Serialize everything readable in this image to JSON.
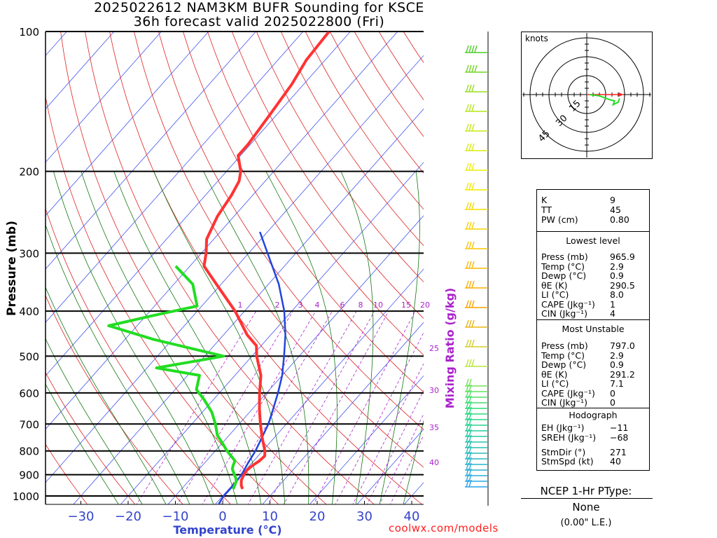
{
  "header": {
    "title_line1": "2025022612 NAM3KM BUFR Sounding for KSCE",
    "title_line2": "36h forecast valid 2025022800 (Fri)"
  },
  "chart_data": {
    "type": "skew-t",
    "xlabel": "Temperature (°C)",
    "ylabel": "Pressure (mb)",
    "mixing_ratio_label": "Mixing Ratio (g/kg)",
    "pressure_ticks": [
      100,
      200,
      300,
      400,
      500,
      600,
      700,
      800,
      900,
      1000
    ],
    "temperature_ticks": [
      -30,
      -20,
      -10,
      0,
      10,
      20,
      30,
      40
    ],
    "mixing_ratio_ticks": [
      1,
      2,
      3,
      4,
      6,
      8,
      10,
      15,
      20,
      25,
      30,
      35,
      40
    ],
    "xlim": [
      -39,
      41
    ],
    "ylim": [
      1050,
      100
    ],
    "temperature_profile": [
      {
        "p": 966,
        "t": 2.9
      },
      {
        "p": 950,
        "t": 2.0
      },
      {
        "p": 925,
        "t": 1.0
      },
      {
        "p": 900,
        "t": 0.5
      },
      {
        "p": 880,
        "t": 0.3
      },
      {
        "p": 860,
        "t": 0.6
      },
      {
        "p": 840,
        "t": 1.2
      },
      {
        "p": 820,
        "t": 1.4
      },
      {
        "p": 800,
        "t": 0.5
      },
      {
        "p": 750,
        "t": -2.5
      },
      {
        "p": 700,
        "t": -5.5
      },
      {
        "p": 650,
        "t": -8.5
      },
      {
        "p": 600,
        "t": -11.5
      },
      {
        "p": 550,
        "t": -14.5
      },
      {
        "p": 500,
        "t": -19.0
      },
      {
        "p": 475,
        "t": -21.0
      },
      {
        "p": 450,
        "t": -25.0
      },
      {
        "p": 400,
        "t": -32.0
      },
      {
        "p": 350,
        "t": -41.0
      },
      {
        "p": 320,
        "t": -47.0
      },
      {
        "p": 300,
        "t": -49.0
      },
      {
        "p": 280,
        "t": -51.5
      },
      {
        "p": 250,
        "t": -53.5
      },
      {
        "p": 225,
        "t": -54.5
      },
      {
        "p": 210,
        "t": -55.5
      },
      {
        "p": 200,
        "t": -57.0
      },
      {
        "p": 185,
        "t": -60.5
      },
      {
        "p": 175,
        "t": -60.5
      },
      {
        "p": 150,
        "t": -61.5
      },
      {
        "p": 130,
        "t": -62.5
      },
      {
        "p": 115,
        "t": -64.0
      },
      {
        "p": 100,
        "t": -64.5
      }
    ],
    "dewpoint_profile": [
      {
        "p": 966,
        "t": 0.9
      },
      {
        "p": 950,
        "t": 0.6
      },
      {
        "p": 925,
        "t": 0.0
      },
      {
        "p": 900,
        "t": -1.5
      },
      {
        "p": 875,
        "t": -3.0
      },
      {
        "p": 860,
        "t": -3.5
      },
      {
        "p": 840,
        "t": -4.0
      },
      {
        "p": 800,
        "t": -7.5
      },
      {
        "p": 775,
        "t": -9.5
      },
      {
        "p": 740,
        "t": -12.5
      },
      {
        "p": 700,
        "t": -15.0
      },
      {
        "p": 660,
        "t": -18.0
      },
      {
        "p": 620,
        "t": -22.0
      },
      {
        "p": 590,
        "t": -25.5
      },
      {
        "p": 550,
        "t": -27.5
      },
      {
        "p": 530,
        "t": -38.0
      },
      {
        "p": 500,
        "t": -26.0
      },
      {
        "p": 460,
        "t": -44.0
      },
      {
        "p": 430,
        "t": -56.0
      },
      {
        "p": 410,
        "t": -49.0
      },
      {
        "p": 390,
        "t": -41.0
      },
      {
        "p": 350,
        "t": -46.0
      },
      {
        "p": 320,
        "t": -53.0
      }
    ],
    "parcel_path": [
      {
        "p": 1050,
        "t": 0.8
      },
      {
        "p": 1000,
        "t": 0.2
      },
      {
        "p": 950,
        "t": 0.3
      },
      {
        "p": 900,
        "t": 0.0
      },
      {
        "p": 850,
        "t": -0.8
      },
      {
        "p": 800,
        "t": -1.5
      },
      {
        "p": 750,
        "t": -2.6
      },
      {
        "p": 700,
        "t": -3.8
      },
      {
        "p": 650,
        "t": -5.6
      },
      {
        "p": 600,
        "t": -7.6
      },
      {
        "p": 550,
        "t": -10.0
      },
      {
        "p": 500,
        "t": -13.2
      },
      {
        "p": 450,
        "t": -16.9
      },
      {
        "p": 400,
        "t": -21.6
      },
      {
        "p": 350,
        "t": -27.8
      },
      {
        "p": 300,
        "t": -36.0
      },
      {
        "p": 270,
        "t": -41.6
      }
    ],
    "wind_barbs_color_scale": "pressure-coded (green aloft to yellow/orange mid to cyan low)"
  },
  "hodograph": {
    "unit_label": "knots",
    "ring_labels": [
      "15",
      "30",
      "45"
    ],
    "trace": [
      {
        "u": 2,
        "v": 0
      },
      {
        "u": 10,
        "v": -1
      },
      {
        "u": 18,
        "v": -4
      },
      {
        "u": 22,
        "v": -5
      },
      {
        "u": 21,
        "v": -8
      },
      {
        "u": 23,
        "v": -7
      },
      {
        "u": 25,
        "v": -6
      },
      {
        "u": 26,
        "v": -3
      }
    ],
    "motion_vector": {
      "u": 27,
      "v": 0
    }
  },
  "indices": {
    "top": [
      {
        "label": "K",
        "value": "9"
      },
      {
        "label": "TT",
        "value": "45"
      },
      {
        "label": "PW (cm)",
        "value": "0.80"
      }
    ],
    "lowest_level_title": "Lowest level",
    "lowest_level": [
      {
        "label": "Press (mb)",
        "value": "965.9"
      },
      {
        "label": "Temp (°C)",
        "value": "2.9"
      },
      {
        "label": "Dewp (°C)",
        "value": "0.9"
      },
      {
        "label": "θE (K)",
        "value": "290.5"
      },
      {
        "label": "LI (°C)",
        "value": "8.0"
      },
      {
        "label": "CAPE (Jkg⁻¹)",
        "value": "1"
      },
      {
        "label": "CIN (Jkg⁻¹)",
        "value": "4"
      }
    ],
    "most_unstable_title": "Most Unstable",
    "most_unstable": [
      {
        "label": "Press (mb)",
        "value": "797.0"
      },
      {
        "label": "Temp (°C)",
        "value": "2.9"
      },
      {
        "label": "Dewp (°C)",
        "value": "0.9"
      },
      {
        "label": "θE (K)",
        "value": "291.2"
      },
      {
        "label": "LI (°C)",
        "value": "7.1"
      },
      {
        "label": "CAPE (Jkg⁻¹)",
        "value": "0"
      },
      {
        "label": "CIN (Jkg⁻¹)",
        "value": "0"
      }
    ],
    "hodograph_title": "Hodograph",
    "hodograph_params": [
      {
        "label": "EH (Jkg⁻¹)",
        "value": "−11"
      },
      {
        "label": "SREH (Jkg⁻¹)",
        "value": "−68"
      },
      {
        "label": "StmDir (°)",
        "value": "271"
      },
      {
        "label": "StmSpd (kt)",
        "value": "40"
      }
    ]
  },
  "ptype": {
    "heading": "NCEP 1-Hr PType:",
    "value": "None",
    "amount": "(0.00\" L.E.)"
  },
  "footer": {
    "credit": "coolwx.com/models"
  },
  "colors": {
    "temperature": "#ff3333",
    "dewpoint": "#22dd22",
    "parcel": "#2244dd",
    "isotherms": "#4455ee",
    "dry_adiabats": "#dd2222",
    "moist_adiabats": "#117711",
    "mixing_ratio": "#aa22cc",
    "credit": "#ff2020"
  }
}
